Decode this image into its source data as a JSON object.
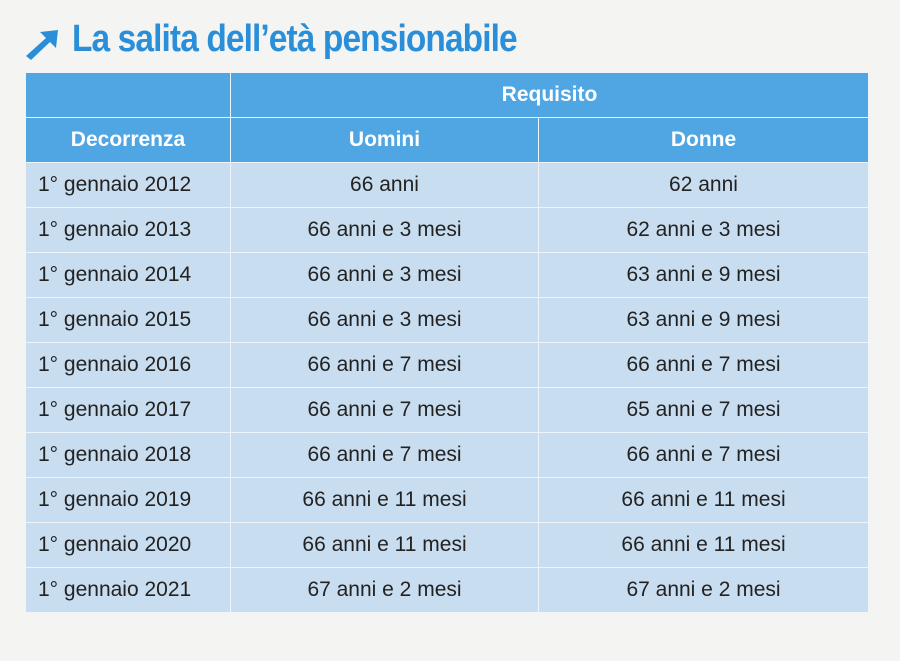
{
  "title": "La salita dell’età pensionabile",
  "table": {
    "group_header": "Requisito",
    "columns": [
      "Decorrenza",
      "Uomini",
      "Donne"
    ],
    "rows": [
      [
        "1° gennaio 2012",
        "66 anni",
        "62 anni"
      ],
      [
        "1° gennaio 2013",
        "66 anni e 3 mesi",
        "62 anni e 3 mesi"
      ],
      [
        "1° gennaio 2014",
        "66 anni e 3 mesi",
        "63 anni e 9 mesi"
      ],
      [
        "1° gennaio 2015",
        "66 anni e 3 mesi",
        "63 anni e 9 mesi"
      ],
      [
        "1° gennaio 2016",
        "66 anni e 7 mesi",
        "66 anni e 7 mesi"
      ],
      [
        "1° gennaio 2017",
        "66 anni e 7 mesi",
        "65 anni e 7 mesi"
      ],
      [
        "1° gennaio 2018",
        "66 anni e 7 mesi",
        "66 anni e 7 mesi"
      ],
      [
        "1° gennaio 2019",
        "66 anni e 11 mesi",
        "66 anni e 11 mesi"
      ],
      [
        "1° gennaio 2020",
        "66 anni e 11 mesi",
        "66 anni e 11 mesi"
      ],
      [
        "1° gennaio 2021",
        "67 anni e 2 mesi",
        "67 anni e 2 mesi"
      ]
    ]
  }
}
